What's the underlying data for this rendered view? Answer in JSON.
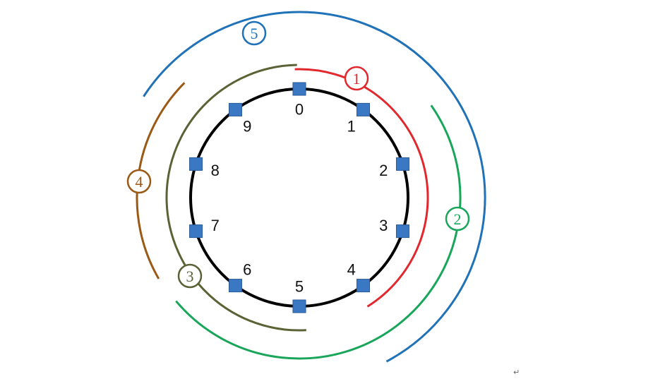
{
  "diagram": {
    "title": "",
    "ring": {
      "stroke": "#000000"
    },
    "nodes": [
      {
        "label": "0"
      },
      {
        "label": "1"
      },
      {
        "label": "2"
      },
      {
        "label": "3"
      },
      {
        "label": "4"
      },
      {
        "label": "5"
      },
      {
        "label": "6"
      },
      {
        "label": "7"
      },
      {
        "label": "8"
      },
      {
        "label": "9"
      }
    ],
    "node_color": "#3a78c3",
    "arcs": [
      {
        "label": "1",
        "color": "#e0282e"
      },
      {
        "label": "2",
        "color": "#1aa65a"
      },
      {
        "label": "3",
        "color": "#5b6236"
      },
      {
        "label": "4",
        "color": "#9a5a16"
      },
      {
        "label": "5",
        "color": "#1f72b8"
      }
    ],
    "paragraph_mark": "↵"
  }
}
